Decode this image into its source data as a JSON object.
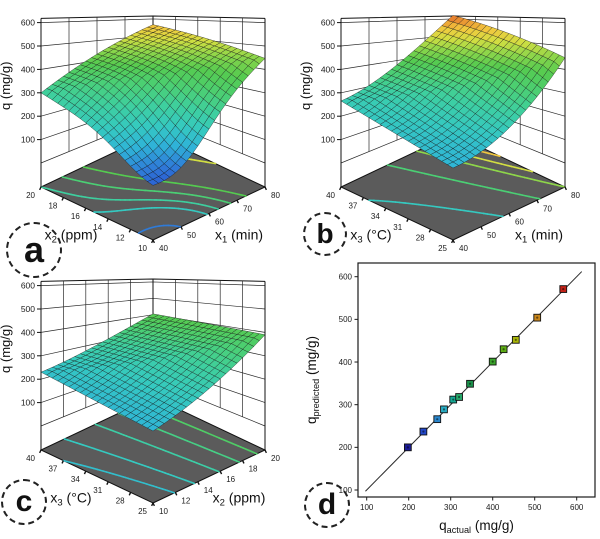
{
  "figure": {
    "background": "#ffffff",
    "floor_color": "#5b5b5b",
    "frame_color": "#1a1a1a"
  },
  "colormap_stops": [
    [
      100,
      "#2841cc"
    ],
    [
      150,
      "#2f7bd8"
    ],
    [
      200,
      "#2fb3d8"
    ],
    [
      250,
      "#35c9c0"
    ],
    [
      300,
      "#3ecf9f"
    ],
    [
      350,
      "#4bcf74"
    ],
    [
      400,
      "#55cb50"
    ],
    [
      450,
      "#8ed64a"
    ],
    [
      500,
      "#d2de42"
    ],
    [
      550,
      "#f2c83e"
    ],
    [
      600,
      "#e8862f"
    ],
    [
      650,
      "#d9402e"
    ]
  ],
  "chart_data": [
    {
      "panel_label": "a",
      "type": "surface3d",
      "zlabel": {
        "main": "q",
        "sub": "",
        "rest": " (mg/g)"
      },
      "z_ticks": [
        100,
        200,
        300,
        400,
        500,
        600
      ],
      "zlim": [
        0,
        600
      ],
      "left_axis": {
        "title": {
          "main": "x",
          "sub": "2",
          "rest": " (ppm)"
        },
        "ticks": [
          10,
          12,
          14,
          16,
          18,
          20
        ]
      },
      "right_axis": {
        "title": {
          "main": "x",
          "sub": "1",
          "rest": " (min)"
        },
        "ticks": [
          40,
          50,
          60,
          70,
          80
        ]
      },
      "surface": {
        "corners": {
          "front": 230,
          "left": 300,
          "right": 450,
          "back": 565
        },
        "dip": {
          "u": 0.22,
          "v": 0.0,
          "amp": -135,
          "sigma": 0.28
        },
        "sag_u": 0
      },
      "contour_levels": [
        150,
        250,
        300,
        350,
        400,
        500
      ]
    },
    {
      "panel_label": "b",
      "type": "surface3d",
      "zlabel": {
        "main": "q",
        "sub": "",
        "rest": " (mg/g)"
      },
      "z_ticks": [
        100,
        200,
        300,
        400,
        500,
        600
      ],
      "zlim": [
        0,
        600
      ],
      "left_axis": {
        "title": {
          "main": "x",
          "sub": "3",
          "rest": " (°C)"
        },
        "ticks": [
          25,
          28,
          31,
          34,
          37,
          40
        ]
      },
      "right_axis": {
        "title": {
          "main": "x",
          "sub": "1",
          "rest": " (min)"
        },
        "ticks": [
          40,
          50,
          60,
          70,
          80
        ]
      },
      "surface": {
        "corners": {
          "front": 205,
          "left": 265,
          "right": 450,
          "back": 622
        },
        "dip": null,
        "sag_u": 65
      },
      "contour_levels": [
        250,
        350,
        450,
        500,
        550
      ]
    },
    {
      "panel_label": "c",
      "type": "surface3d",
      "zlabel": {
        "main": "q",
        "sub": "",
        "rest": " (mg/g)"
      },
      "z_ticks": [
        100,
        200,
        300,
        400,
        500,
        600
      ],
      "zlim": [
        0,
        600
      ],
      "left_axis": {
        "title": {
          "main": "x",
          "sub": "3",
          "rest": " (°C)"
        },
        "ticks": [
          25,
          28,
          31,
          34,
          37,
          40
        ]
      },
      "right_axis": {
        "title": {
          "main": "x",
          "sub": "2",
          "rest": " (ppm)"
        },
        "ticks": [
          10,
          12,
          14,
          16,
          18,
          20
        ]
      },
      "surface": {
        "corners": {
          "front": 205,
          "left": 230,
          "right": 390,
          "back": 405
        },
        "dip": null,
        "sag_u": 25
      },
      "contour_levels": [
        225,
        250,
        290,
        330,
        370
      ]
    },
    {
      "panel_label": "d",
      "type": "scatter",
      "xlabel": {
        "main": "q",
        "sub": "actual",
        "rest": " (mg/g)"
      },
      "ylabel": {
        "main": "q",
        "sub": "predicted",
        "rest": " (mg/g)"
      },
      "x_ticks": [
        100,
        200,
        300,
        400,
        500,
        600
      ],
      "y_ticks": [
        100,
        200,
        300,
        400,
        500,
        600
      ],
      "xlim": [
        80,
        643
      ],
      "ylim": [
        84,
        632
      ],
      "identity_line": {
        "from": 97,
        "to": 612
      },
      "points": [
        {
          "x": 198,
          "y": 200,
          "color": "#1c1c96"
        },
        {
          "x": 235,
          "y": 237,
          "color": "#2348c8"
        },
        {
          "x": 268,
          "y": 266,
          "color": "#2b86cc"
        },
        {
          "x": 284,
          "y": 289,
          "color": "#2aadc4"
        },
        {
          "x": 306,
          "y": 312,
          "color": "#17a894"
        },
        {
          "x": 320,
          "y": 318,
          "color": "#27a76a"
        },
        {
          "x": 346,
          "y": 349,
          "color": "#1b8f4a"
        },
        {
          "x": 400,
          "y": 401,
          "color": "#3aa32b"
        },
        {
          "x": 426,
          "y": 430,
          "color": "#5fae17"
        },
        {
          "x": 455,
          "y": 452,
          "color": "#a8b40a"
        },
        {
          "x": 506,
          "y": 504,
          "color": "#c8861c"
        },
        {
          "x": 568,
          "y": 571,
          "color": "#c22318"
        }
      ]
    }
  ]
}
